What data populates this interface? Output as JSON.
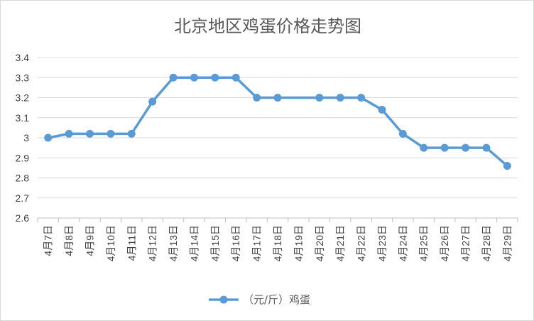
{
  "chart_data": {
    "type": "line",
    "title": "北京地区鸡蛋价格走势图",
    "xlabel": "",
    "ylabel": "",
    "categories": [
      "4月7日",
      "4月8日",
      "4月9日",
      "4月10日",
      "4月11日",
      "4月12日",
      "4月13日",
      "4月14日",
      "4月15日",
      "4月16日",
      "4月17日",
      "4月18日",
      "4月19日",
      "4月20日",
      "4月21日",
      "4月22日",
      "4月23日",
      "4月24日",
      "4月25日",
      "4月26日",
      "4月27日",
      "4月28日",
      "4月29日"
    ],
    "series": [
      {
        "name": "（元/斤）鸡蛋",
        "color": "#5B9BD5",
        "values": [
          3.0,
          3.02,
          3.02,
          3.02,
          3.02,
          3.18,
          3.3,
          3.3,
          3.3,
          3.3,
          3.2,
          3.2,
          null,
          3.2,
          3.2,
          3.2,
          3.14,
          3.02,
          2.95,
          2.95,
          2.95,
          2.95,
          2.86
        ]
      }
    ],
    "ylim": [
      2.6,
      3.4
    ],
    "yticks": [
      "2.6",
      "2.7",
      "2.8",
      "2.9",
      "3",
      "3.1",
      "3.2",
      "3.3",
      "3.4"
    ],
    "grid": true,
    "legend_position": "bottom"
  }
}
